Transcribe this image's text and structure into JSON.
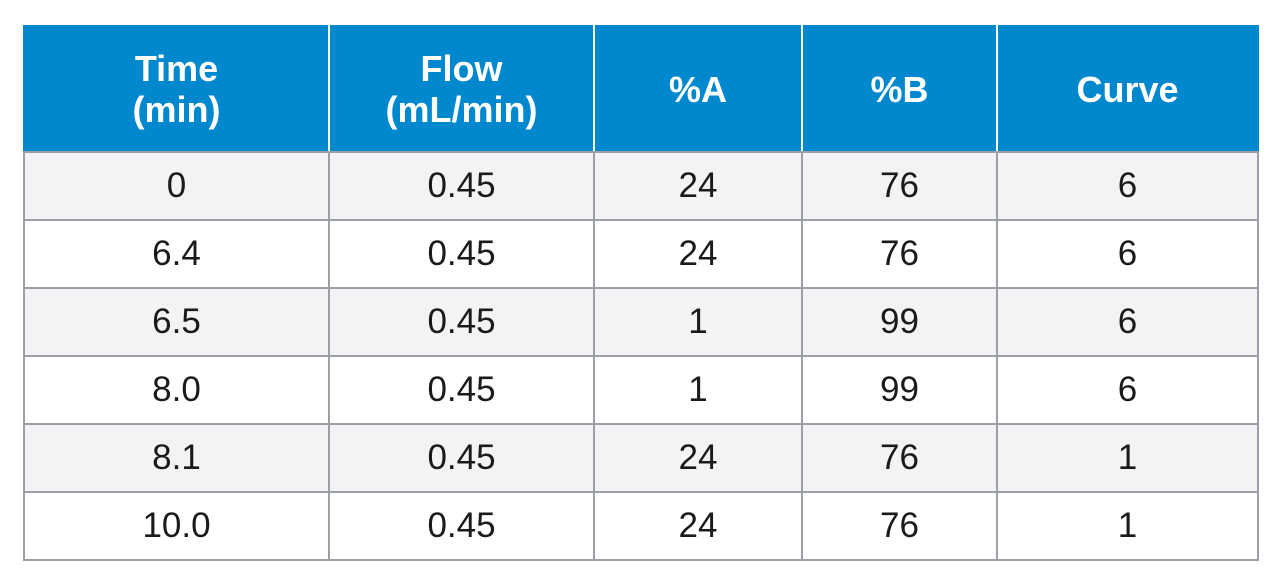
{
  "table": {
    "headers": [
      {
        "line1": "Time",
        "line2": "(min)"
      },
      {
        "line1": "Flow",
        "line2": "(mL/min)"
      },
      {
        "line1": "%A",
        "line2": ""
      },
      {
        "line1": "%B",
        "line2": ""
      },
      {
        "line1": "Curve",
        "line2": ""
      }
    ],
    "rows": [
      [
        "0",
        "0.45",
        "24",
        "76",
        "6"
      ],
      [
        "6.4",
        "0.45",
        "24",
        "76",
        "6"
      ],
      [
        "6.5",
        "0.45",
        "1",
        "99",
        "6"
      ],
      [
        "8.0",
        "0.45",
        "1",
        "99",
        "6"
      ],
      [
        "8.1",
        "0.45",
        "24",
        "76",
        "1"
      ],
      [
        "10.0",
        "0.45",
        "24",
        "76",
        "1"
      ]
    ]
  },
  "colors": {
    "header_bg": "#0088cf",
    "header_text": "#ffffff",
    "row_shaded": "#f3f3f5",
    "grid": "#9aa0a6"
  }
}
